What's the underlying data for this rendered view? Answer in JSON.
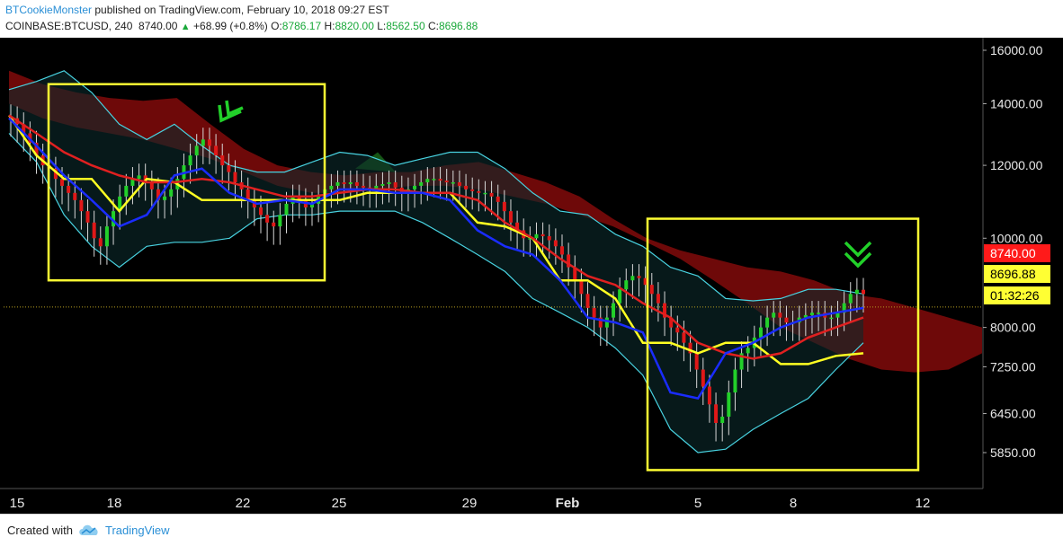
{
  "header": {
    "author": "BTCookieMonster",
    "published": " published on TradingView.com, February 10, 2018 09:27 EST",
    "symbol": "COINBASE:BTCUSD, 240",
    "price": "8740.00",
    "change_arrow": "▲",
    "change": "+68.99 (+0.8%)",
    "o_label": " O:",
    "o_value": "8786.17",
    "h_label": " H:",
    "h_value": "8820.00",
    "l_label": " L:",
    "l_value": "8562.50",
    "c_label": " C:",
    "c_value": "8696.88"
  },
  "footer": {
    "created_with": "Created with",
    "brand": "TradingView"
  },
  "colors": {
    "background": "#000000",
    "bull": "#22d02a",
    "bear": "#e01818",
    "blue_line": "#1a2cff",
    "red_line": "#e02020",
    "yellow_line": "#ffff22",
    "bollinger": "#48d2e0",
    "cloud_bear": "#7a0a0a",
    "cloud_bull": "#1a6a1a",
    "box": "#ffff33",
    "marker": "#22d02a"
  },
  "chart_data": {
    "type": "candlestick",
    "symbol": "COINBASE:BTCUSD",
    "interval": "240",
    "y_scale": "log",
    "ylim": [
      5400,
      16600
    ],
    "y_ticks": [
      "16000.00",
      "14000.00",
      "12000.00",
      "10000.00",
      "8000.00",
      "7250.00",
      "6450.00",
      "5850.00"
    ],
    "x_ticks": [
      "15",
      "18",
      "22",
      "25",
      "29",
      "Feb",
      "5",
      "8",
      "12"
    ],
    "price_labels": [
      {
        "text": "8740.00",
        "value": 8740,
        "color": "#ff1a1a",
        "text_color": "#ffffff"
      },
      {
        "text": "8696.88",
        "value": 8696.88,
        "color": "#ffff33",
        "text_color": "#000000"
      },
      {
        "text": "01:32:26",
        "value": 8420,
        "color": "#ffff33",
        "text_color": "#000000"
      }
    ],
    "x_date_range": [
      "2018-01-15",
      "2018-02-13"
    ],
    "candles_close": [
      13500,
      13300,
      13000,
      12700,
      12300,
      12000,
      11900,
      11600,
      11400,
      11200,
      11000,
      10700,
      10400,
      10000,
      9800,
      10300,
      10700,
      11100,
      11400,
      11600,
      11700,
      11500,
      11300,
      11000,
      11100,
      11300,
      11600,
      12000,
      12300,
      12600,
      12800,
      12600,
      12300,
      12000,
      11800,
      11500,
      11300,
      11000,
      10800,
      10600,
      10400,
      10300,
      10600,
      10900,
      11100,
      11000,
      10800,
      10900,
      11100,
      11300,
      11400,
      11500,
      11450,
      11500,
      11400,
      11350,
      11300,
      11400,
      11450,
      11500,
      11350,
      11200,
      11300,
      11400,
      11500,
      11600,
      11600,
      11550,
      11500,
      11500,
      11400,
      11300,
      11250,
      11200,
      11200,
      11100,
      10950,
      10700,
      10400,
      10200,
      10000,
      10000,
      10100,
      10050,
      9950,
      9800,
      9600,
      9300,
      9000,
      8700,
      8400,
      8200,
      8000,
      8200,
      8500,
      8800,
      9000,
      9100,
      9050,
      8900,
      8700,
      8500,
      8200,
      8000,
      7900,
      7700,
      7500,
      7200,
      6900,
      6600,
      6300,
      6400,
      6800,
      7200,
      7500,
      7600,
      7800,
      8000,
      8200,
      8300,
      8200,
      8100,
      8100,
      8200,
      8250,
      8300,
      8300,
      8200,
      8200,
      8300,
      8500,
      8700,
      8790,
      8697
    ],
    "indicators": {
      "blue_line_close": [
        13500,
        12600,
        11700,
        11000,
        10300,
        10600,
        11700,
        11900,
        11200,
        10900,
        11000,
        10900,
        11300,
        11300,
        11200,
        11200,
        11000,
        10200,
        9800,
        9600,
        9000,
        8200,
        8100,
        7900,
        6800,
        6700,
        7500,
        7700,
        8000,
        8200,
        8300,
        8400
      ],
      "red_line_close": [
        13600,
        13000,
        12400,
        12000,
        11700,
        11500,
        11500,
        11600,
        11500,
        11300,
        11100,
        11100,
        11200,
        11300,
        11300,
        11200,
        11200,
        11000,
        10400,
        10000,
        9500,
        9100,
        8900,
        8500,
        8200,
        7700,
        7500,
        7400,
        7500,
        7800,
        8000,
        8200
      ],
      "yellow_line_close": [
        13600,
        12300,
        11600,
        11600,
        10700,
        11600,
        11500,
        11000,
        11000,
        11000,
        11000,
        11000,
        11000,
        11200,
        11200,
        11200,
        11200,
        10400,
        10300,
        10000,
        9000,
        9000,
        8600,
        7700,
        7700,
        7500,
        7700,
        7700,
        7300,
        7300,
        7450,
        7500
      ],
      "bollinger_upper_close": [
        14500,
        14800,
        15200,
        14400,
        13300,
        12800,
        13300,
        12600,
        12000,
        11800,
        11800,
        12100,
        12400,
        12300,
        12000,
        12200,
        12400,
        12400,
        11900,
        11200,
        10700,
        10600,
        10100,
        9800,
        9300,
        9100,
        8600,
        8550,
        8600,
        8800,
        8800,
        8700
      ],
      "bollinger_lower_close": [
        13000,
        12100,
        10600,
        9800,
        9300,
        9800,
        9900,
        9900,
        10000,
        10500,
        10600,
        10600,
        10700,
        10700,
        10700,
        10400,
        10000,
        9600,
        9200,
        8600,
        8300,
        8000,
        7600,
        7100,
        6200,
        5850,
        5900,
        6200,
        6450,
        6700,
        7200,
        7700
      ],
      "cloud_top_close": [
        15200,
        14700,
        14400,
        14200,
        14100,
        14200,
        13300,
        12500,
        12000,
        11800,
        11700,
        11800,
        11800,
        12000,
        12100,
        11800,
        11500,
        11100,
        10500,
        10000,
        9700,
        9500,
        9300,
        9200,
        9000,
        8700,
        8600,
        8400,
        8200,
        8000
      ],
      "cloud_bottom_close": [
        14000,
        13500,
        13200,
        13000,
        12800,
        12500,
        12200,
        11800,
        11400,
        11200,
        11200,
        11300,
        11400,
        11400,
        11300,
        11100,
        10900,
        10600,
        10300,
        9900,
        9500,
        9000,
        8500,
        8000,
        7700,
        7400,
        7200,
        7150,
        7200,
        7500
      ]
    },
    "annotations": [
      {
        "type": "box",
        "x_range": [
          "2018-01-16",
          "2018-01-24"
        ],
        "y_range": [
          9000,
          14700
        ]
      },
      {
        "type": "box",
        "x_range": [
          "2018-02-03",
          "2018-02-12"
        ],
        "y_range": [
          5600,
          10500
        ]
      },
      {
        "type": "chevron",
        "label": "double chevron near Jan 21",
        "value": 14000
      },
      {
        "type": "chevron",
        "label": "double chevron near Feb 10",
        "value": 9100
      }
    ]
  }
}
